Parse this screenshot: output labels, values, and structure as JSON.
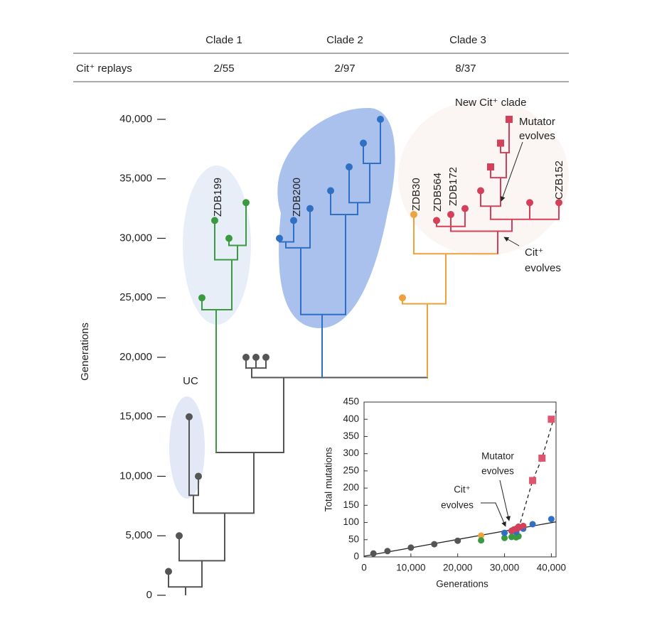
{
  "header_table": {
    "columns": [
      "Clade 1",
      "Clade 2",
      "Clade 3"
    ],
    "rows": [
      [
        "Cit⁺ replays",
        "2/55",
        "2/97",
        "8/37"
      ]
    ]
  },
  "chart_data": [
    {
      "type": "tree",
      "ylabel": "Generations",
      "ylim": [
        0,
        40000
      ],
      "yticks": [
        0,
        {
          "value": 5000,
          "label": "5,000"
        },
        {
          "value": 10000,
          "label": "10,000"
        },
        {
          "value": 15000,
          "label": "15,000"
        },
        {
          "value": 20000,
          "label": "20,000"
        },
        {
          "value": 25000,
          "label": "25,000"
        },
        {
          "value": 30000,
          "label": "30,000"
        },
        {
          "value": 35000,
          "label": "35,000"
        },
        {
          "value": 40000,
          "label": "40,000"
        }
      ],
      "lineages": [
        {
          "color": "#555555",
          "values": [
            2000,
            5000,
            10000,
            15000,
            20000,
            20000,
            20000
          ],
          "branch_points": [
            700,
            2900,
            6900,
            8400,
            12000,
            18300,
            19100
          ]
        },
        {
          "color": "#3a9a3f",
          "values": [
            25000,
            31500,
            30000,
            33000
          ],
          "branch_points": [
            24000,
            28200,
            29400
          ]
        },
        {
          "color": "#2f6fc4",
          "values": [
            30000,
            31500,
            32500,
            34000,
            36000,
            38000,
            40000
          ],
          "branch_points": [
            23600,
            29200,
            29700,
            32000,
            33000,
            36300
          ]
        },
        {
          "color": "#eea23e",
          "values": [
            25000,
            32000
          ],
          "branch_points": [
            24500,
            28700
          ]
        },
        {
          "color": "#d4405a",
          "values": [
            31500,
            32000,
            32500,
            34000,
            33000,
            33000
          ],
          "branch_points": [
            30600,
            31000,
            31600,
            32700,
            35100,
            37200
          ]
        },
        {
          "color": "#d4405a",
          "marker": "square",
          "values": [
            36000,
            38000,
            40000
          ]
        }
      ],
      "clade_labels": [
        "UC",
        "ZDB199",
        "ZDB200",
        "ZDB30",
        "ZDB564",
        "ZDB172",
        "CZB152"
      ],
      "annotations": [
        [
          "New Cit⁺ clade"
        ],
        [
          "Mutator",
          "evolves"
        ],
        [
          "Cit⁺",
          "evolves"
        ]
      ]
    },
    {
      "type": "scatter",
      "xlabel": "Generations",
      "ylabel": "Total mutations",
      "xlim": [
        0,
        41000
      ],
      "ylim": [
        0,
        450
      ],
      "xticks": [
        0,
        {
          "value": 10000,
          "label": "10,000"
        },
        {
          "value": 20000,
          "label": "20,000"
        },
        {
          "value": 30000,
          "label": "30,000"
        },
        {
          "value": 40000,
          "label": "40,000"
        }
      ],
      "yticks": [
        0,
        50,
        100,
        150,
        200,
        250,
        300,
        350,
        400,
        450
      ],
      "series": [
        {
          "color": "#555555",
          "x": [
            2000,
            5000,
            10000,
            15000,
            20000
          ],
          "values": [
            10,
            17,
            27,
            37,
            47
          ]
        },
        {
          "color": "#eea23e",
          "x": [
            25000,
            32000
          ],
          "values": [
            62,
            66
          ]
        },
        {
          "color": "#3a9a3f",
          "x": [
            25000,
            30000,
            31500,
            32500,
            33000
          ],
          "values": [
            48,
            55,
            58,
            57,
            60
          ]
        },
        {
          "color": "#2f6fc4",
          "x": [
            30000,
            31500,
            32500,
            34000,
            36000,
            40000
          ],
          "values": [
            70,
            75,
            72,
            82,
            95,
            110
          ]
        },
        {
          "color": "#d4405a",
          "x": [
            31500,
            32000,
            32500,
            33000,
            33000,
            34000
          ],
          "values": [
            76,
            80,
            82,
            84,
            88,
            90
          ]
        },
        {
          "color": "#e0546e",
          "marker": "square",
          "x": [
            36000,
            38000,
            40000
          ],
          "values": [
            222,
            287,
            400
          ]
        }
      ],
      "lines": [
        {
          "style": "solid",
          "x": [
            0,
            41000
          ],
          "values": [
            2,
            102
          ]
        },
        {
          "style": "dashed",
          "x": [
            33000,
            36000,
            38000,
            41000
          ],
          "values": [
            82,
            222,
            287,
            425
          ]
        }
      ],
      "annotations": [
        [
          "Mutator",
          "evolves"
        ],
        [
          "Cit⁺",
          "evolves"
        ]
      ]
    }
  ]
}
